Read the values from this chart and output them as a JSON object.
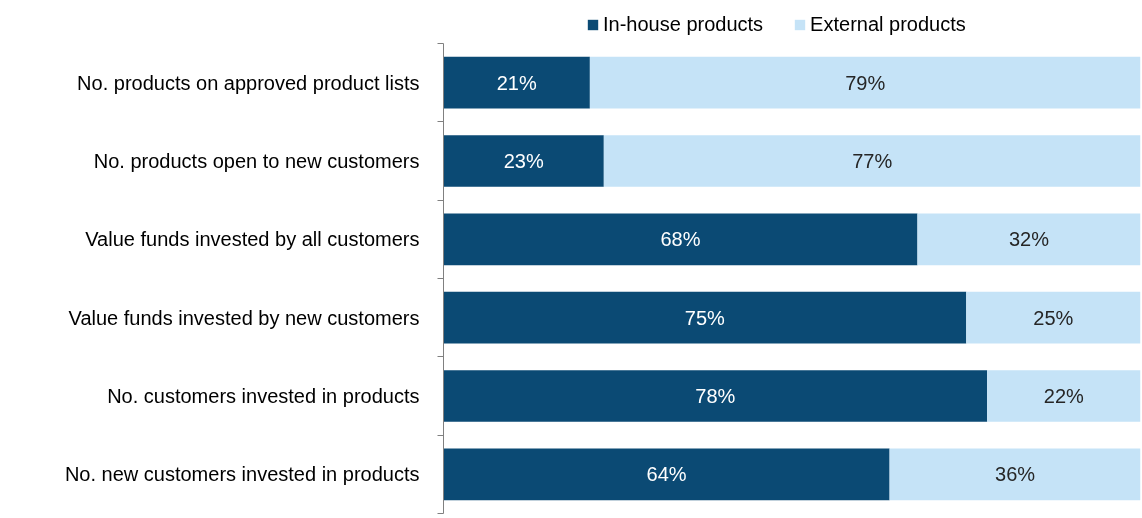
{
  "chart_data": {
    "type": "bar",
    "orientation": "horizontal",
    "stacked": true,
    "legend": "top right",
    "grid": false,
    "tick_labels": "y",
    "categories": [
      "No. products on approved product lists",
      "No. products open to new customers",
      "Value funds invested by all customers",
      "Value funds invested by new customers",
      "No. customers invested in products",
      "No. new customers invested in products"
    ],
    "series": [
      {
        "name": "In-house products",
        "color": "#0b4a74",
        "values": [
          21,
          23,
          68,
          75,
          78,
          64
        ],
        "value_labels": [
          "21%",
          "23%",
          "68%",
          "75%",
          "78%",
          "64%"
        ]
      },
      {
        "name": "External products",
        "color": "#c5e3f7",
        "values": [
          79,
          77,
          32,
          25,
          22,
          36
        ],
        "value_labels": [
          "79%",
          "77%",
          "32%",
          "25%",
          "22%",
          "36%"
        ]
      }
    ]
  }
}
